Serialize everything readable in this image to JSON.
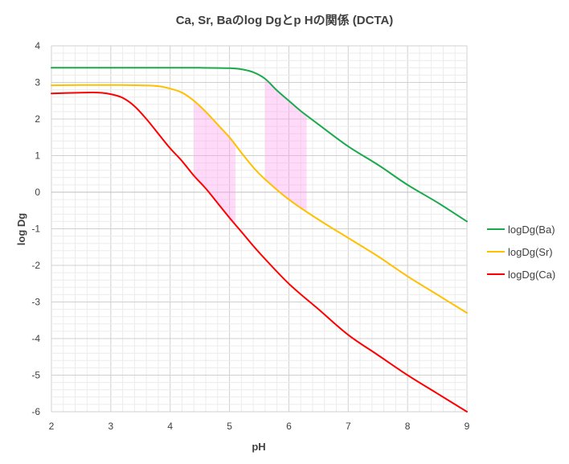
{
  "chart_data": {
    "type": "line",
    "title": "Ca, Sr, Baのlog Dgとp Hの関係 (DCTA)",
    "xlabel": "pH",
    "ylabel": "log Dg",
    "xlim": [
      2,
      9
    ],
    "ylim": [
      -6,
      4
    ],
    "x_ticks": [
      "2",
      "3",
      "4",
      "5",
      "6",
      "7",
      "8",
      "9"
    ],
    "y_ticks": [
      "4",
      "3",
      "2",
      "1",
      "0",
      "-1",
      "-2",
      "-3",
      "-4",
      "-5",
      "-6"
    ],
    "grid": {
      "major": true,
      "minor": true
    },
    "legend_position": "right",
    "series": [
      {
        "name": "logDg(Ba)",
        "color": "#1aa94c",
        "points": [
          [
            2,
            3.4
          ],
          [
            2.5,
            3.4
          ],
          [
            3,
            3.4
          ],
          [
            3.5,
            3.4
          ],
          [
            4,
            3.4
          ],
          [
            4.5,
            3.4
          ],
          [
            5,
            3.39
          ],
          [
            5.2,
            3.36
          ],
          [
            5.4,
            3.28
          ],
          [
            5.6,
            3.1
          ],
          [
            5.8,
            2.78
          ],
          [
            6,
            2.5
          ],
          [
            6.2,
            2.22
          ],
          [
            6.5,
            1.85
          ],
          [
            7,
            1.25
          ],
          [
            7.5,
            0.75
          ],
          [
            8,
            0.2
          ],
          [
            8.5,
            -0.28
          ],
          [
            9,
            -0.8
          ]
        ]
      },
      {
        "name": "logDg(Sr)",
        "color": "#ffc000",
        "points": [
          [
            2,
            2.92
          ],
          [
            2.5,
            2.93
          ],
          [
            3,
            2.93
          ],
          [
            3.5,
            2.92
          ],
          [
            3.8,
            2.9
          ],
          [
            4,
            2.83
          ],
          [
            4.2,
            2.72
          ],
          [
            4.4,
            2.5
          ],
          [
            4.6,
            2.2
          ],
          [
            4.8,
            1.85
          ],
          [
            5,
            1.5
          ],
          [
            5.2,
            1.08
          ],
          [
            5.4,
            0.68
          ],
          [
            5.6,
            0.35
          ],
          [
            6,
            -0.2
          ],
          [
            6.5,
            -0.75
          ],
          [
            7,
            -1.25
          ],
          [
            7.5,
            -1.75
          ],
          [
            8,
            -2.3
          ],
          [
            8.5,
            -2.8
          ],
          [
            9,
            -3.3
          ]
        ]
      },
      {
        "name": "logDg(Ca)",
        "color": "#ff0000",
        "points": [
          [
            2,
            2.7
          ],
          [
            2.5,
            2.72
          ],
          [
            2.8,
            2.72
          ],
          [
            3,
            2.68
          ],
          [
            3.2,
            2.58
          ],
          [
            3.4,
            2.35
          ],
          [
            3.6,
            2.0
          ],
          [
            3.8,
            1.6
          ],
          [
            4,
            1.2
          ],
          [
            4.2,
            0.85
          ],
          [
            4.4,
            0.45
          ],
          [
            4.6,
            0.1
          ],
          [
            4.8,
            -0.3
          ],
          [
            5,
            -0.7
          ],
          [
            5.2,
            -1.08
          ],
          [
            5.5,
            -1.65
          ],
          [
            6,
            -2.5
          ],
          [
            6.5,
            -3.2
          ],
          [
            7,
            -3.9
          ],
          [
            7.5,
            -4.45
          ],
          [
            8,
            -5.0
          ],
          [
            8.5,
            -5.5
          ],
          [
            9,
            -6.0
          ]
        ]
      }
    ],
    "shaded_regions": [
      {
        "x": [
          4.4,
          5.1
        ],
        "color": "#ff99ee"
      },
      {
        "x": [
          5.6,
          6.3
        ],
        "color": "#ff99ee"
      }
    ]
  }
}
